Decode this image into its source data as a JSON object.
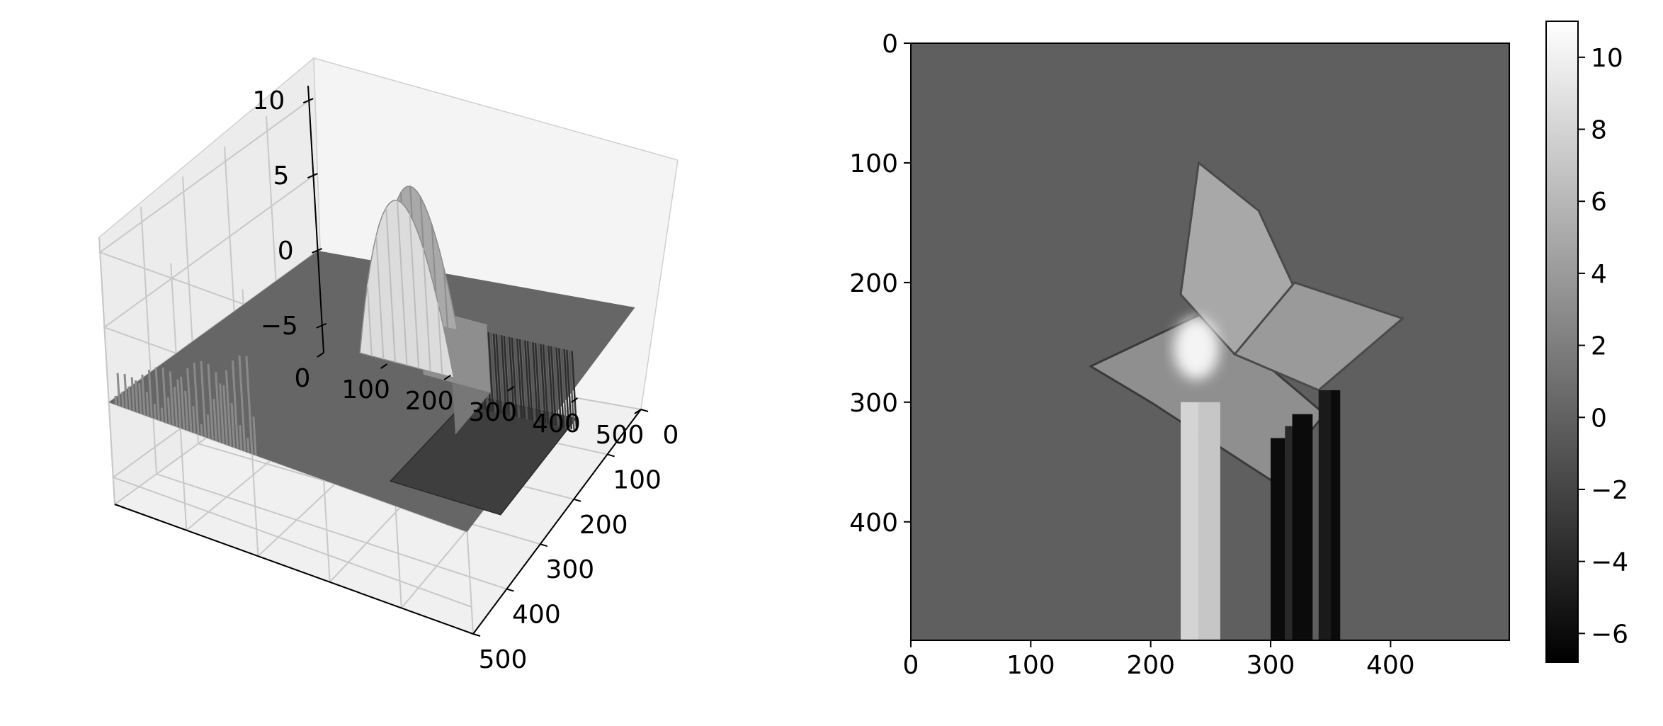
{
  "chart_data": [
    {
      "type": "surface3d",
      "colormap": "gray",
      "title": "",
      "xlabel": "",
      "ylabel": "",
      "zlabel": "",
      "x_ticks": [
        0,
        100,
        200,
        300,
        400,
        500
      ],
      "y_ticks": [
        0,
        100,
        200,
        300,
        400,
        500
      ],
      "z_ticks": [
        -5,
        0,
        5,
        10
      ],
      "xlim": [
        0,
        500
      ],
      "ylim": [
        0,
        500
      ],
      "zlim": [
        -6.8,
        11
      ],
      "grid": true,
      "background_plane": 0,
      "features": [
        {
          "name": "peak",
          "x": 270,
          "y": 220,
          "z": 11
        },
        {
          "name": "peak",
          "x": 230,
          "y": 120,
          "z": 9
        },
        {
          "name": "plateau",
          "x_range": [
            300,
            400
          ],
          "y_range": [
            230,
            330
          ],
          "z": 4.5
        },
        {
          "name": "trough",
          "x_range": [
            300,
            460
          ],
          "y_range": [
            110,
            330
          ],
          "z": -4.5
        }
      ]
    },
    {
      "type": "heatmap",
      "colormap": "gray",
      "title": "",
      "xlabel": "",
      "ylabel": "",
      "x_ticks": [
        0,
        100,
        200,
        300,
        400
      ],
      "y_ticks": [
        0,
        100,
        200,
        300,
        400
      ],
      "xlim": [
        0,
        499
      ],
      "ylim": [
        499,
        0
      ],
      "background_value": 0,
      "colorbar": {
        "min": -6.8,
        "max": 11,
        "ticks": [
          -6,
          -4,
          -2,
          0,
          2,
          4,
          6,
          8,
          10
        ]
      },
      "stripes": [
        {
          "x_range": [
            225,
            240
          ],
          "y_range": [
            300,
            499
          ],
          "value": 8
        },
        {
          "x_range": [
            240,
            258
          ],
          "y_range": [
            300,
            499
          ],
          "value": 7
        },
        {
          "x_range": [
            300,
            312
          ],
          "y_range": [
            330,
            499
          ],
          "value": -6
        },
        {
          "x_range": [
            312,
            318
          ],
          "y_range": [
            320,
            499
          ],
          "value": -4
        },
        {
          "x_range": [
            318,
            335
          ],
          "y_range": [
            310,
            499
          ],
          "value": -6
        },
        {
          "x_range": [
            340,
            350
          ],
          "y_range": [
            290,
            499
          ],
          "value": -5
        },
        {
          "x_range": [
            350,
            358
          ],
          "y_range": [
            290,
            499
          ],
          "value": -6
        }
      ]
    }
  ]
}
